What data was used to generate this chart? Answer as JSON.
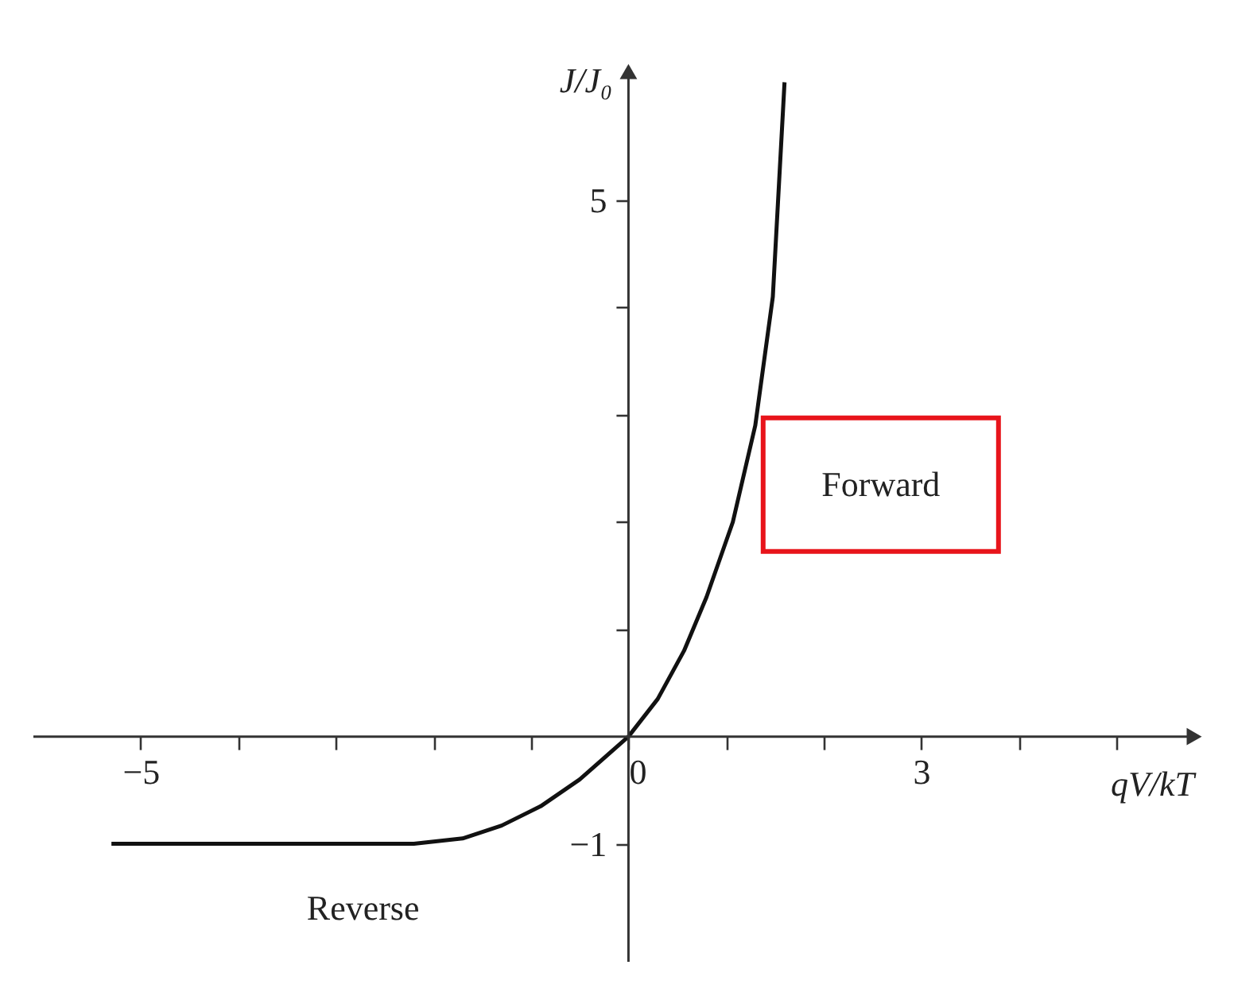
{
  "chart_data": {
    "type": "line",
    "xlabel": "qV/kT",
    "ylabel": "J/J₀",
    "x": [
      -5.3,
      -4,
      -3,
      -2.2,
      -1.7,
      -1.3,
      -0.9,
      -0.5,
      0,
      0.3,
      0.57,
      0.8,
      1.07,
      1.3,
      1.48,
      1.6
    ],
    "series": [
      {
        "color": "#111111",
        "values": [
          -1,
          -1,
          -1,
          -1,
          -0.95,
          -0.83,
          -0.65,
          -0.4,
          0,
          0.35,
          0.8,
          1.3,
          2,
          2.9,
          4.1,
          6.1
        ]
      }
    ],
    "xlim": [
      -6.1,
      5.8
    ],
    "ylim": [
      -2.1,
      6.2
    ],
    "xticks": [
      -5,
      {
        "value": -4,
        "label": null
      },
      {
        "value": -3,
        "label": null
      },
      {
        "value": -2,
        "label": null
      },
      {
        "value": -1,
        "label": null
      },
      0,
      {
        "value": 1,
        "label": null
      },
      {
        "value": 2,
        "label": null
      },
      3,
      {
        "value": 4,
        "label": null
      },
      {
        "value": 5,
        "label": null
      }
    ],
    "yticks": [
      -1,
      {
        "value": 1,
        "label": null
      },
      {
        "value": 2,
        "label": null
      },
      {
        "value": 3,
        "label": null
      },
      {
        "value": 4,
        "label": null
      },
      5
    ],
    "annotations": [
      "Forward",
      "Reverse"
    ],
    "marker": "none",
    "line_style": "solid"
  }
}
